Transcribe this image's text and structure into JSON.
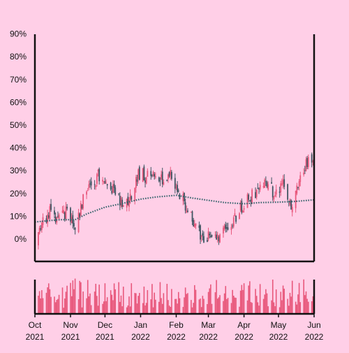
{
  "chart_data": {
    "type": "candlestick",
    "y_tick_labels": [
      "0%",
      "10%",
      "20%",
      "30%",
      "40%",
      "50%",
      "60%",
      "70%",
      "80%",
      "90%"
    ],
    "y_tick_values": [
      0,
      10,
      20,
      30,
      40,
      50,
      60,
      70,
      80,
      90
    ],
    "ylim": [
      -10,
      90
    ],
    "x_ticks": [
      {
        "month": "Oct",
        "year": "2021",
        "date": "2021-10-01"
      },
      {
        "month": "Nov",
        "year": "2021",
        "date": "2021-11-01"
      },
      {
        "month": "Dec",
        "year": "2021",
        "date": "2021-12-01"
      },
      {
        "month": "Jan",
        "year": "2022",
        "date": "2022-01-01"
      },
      {
        "month": "Feb",
        "year": "2022",
        "date": "2022-02-01"
      },
      {
        "month": "Mar",
        "year": "2022",
        "date": "2022-03-01"
      },
      {
        "month": "Apr",
        "year": "2022",
        "date": "2022-04-01"
      },
      {
        "month": "May",
        "year": "2022",
        "date": "2022-05-01"
      },
      {
        "month": "Jun",
        "year": "2022",
        "date": "2022-06-01"
      }
    ],
    "xlim": [
      "2021-10-01",
      "2022-06-01"
    ],
    "close_series": [
      {
        "date": "2021-10-01",
        "value": -3
      },
      {
        "date": "2021-10-08",
        "value": 9
      },
      {
        "date": "2021-10-15",
        "value": 12
      },
      {
        "date": "2021-10-22",
        "value": 8
      },
      {
        "date": "2021-10-29",
        "value": 12
      },
      {
        "date": "2021-11-05",
        "value": 5
      },
      {
        "date": "2021-11-12",
        "value": 17
      },
      {
        "date": "2021-11-19",
        "value": 24
      },
      {
        "date": "2021-11-26",
        "value": 28
      },
      {
        "date": "2021-12-03",
        "value": 24
      },
      {
        "date": "2021-12-10",
        "value": 20
      },
      {
        "date": "2021-12-17",
        "value": 14
      },
      {
        "date": "2021-12-24",
        "value": 20
      },
      {
        "date": "2021-12-31",
        "value": 29
      },
      {
        "date": "2022-01-07",
        "value": 27
      },
      {
        "date": "2022-01-14",
        "value": 29
      },
      {
        "date": "2022-01-21",
        "value": 25
      },
      {
        "date": "2022-01-28",
        "value": 28
      },
      {
        "date": "2022-02-04",
        "value": 20
      },
      {
        "date": "2022-02-11",
        "value": 13
      },
      {
        "date": "2022-02-18",
        "value": 5
      },
      {
        "date": "2022-02-25",
        "value": 0
      },
      {
        "date": "2022-03-04",
        "value": 3
      },
      {
        "date": "2022-03-11",
        "value": 0
      },
      {
        "date": "2022-03-18",
        "value": 5
      },
      {
        "date": "2022-03-25",
        "value": 10
      },
      {
        "date": "2022-04-01",
        "value": 16
      },
      {
        "date": "2022-04-08",
        "value": 19
      },
      {
        "date": "2022-04-15",
        "value": 22
      },
      {
        "date": "2022-04-22",
        "value": 24
      },
      {
        "date": "2022-04-29",
        "value": 19
      },
      {
        "date": "2022-05-06",
        "value": 24
      },
      {
        "date": "2022-05-13",
        "value": 14
      },
      {
        "date": "2022-05-20",
        "value": 28
      },
      {
        "date": "2022-05-27",
        "value": 35
      },
      {
        "date": "2022-06-01",
        "value": 31
      }
    ],
    "moving_average": [
      {
        "date": "2021-10-01",
        "value": 7.5
      },
      {
        "date": "2021-10-22",
        "value": 8.5
      },
      {
        "date": "2021-11-05",
        "value": 8.5
      },
      {
        "date": "2021-11-15",
        "value": 11
      },
      {
        "date": "2021-12-01",
        "value": 14
      },
      {
        "date": "2021-12-15",
        "value": 15.5
      },
      {
        "date": "2022-01-01",
        "value": 17.5
      },
      {
        "date": "2022-01-15",
        "value": 18.5
      },
      {
        "date": "2022-02-01",
        "value": 19.2
      },
      {
        "date": "2022-02-15",
        "value": 18
      },
      {
        "date": "2022-03-01",
        "value": 17
      },
      {
        "date": "2022-03-15",
        "value": 16
      },
      {
        "date": "2022-04-01",
        "value": 15.5
      },
      {
        "date": "2022-04-15",
        "value": 16
      },
      {
        "date": "2022-05-01",
        "value": 16.2
      },
      {
        "date": "2022-05-15",
        "value": 16.5
      },
      {
        "date": "2022-06-01",
        "value": 17.2
      }
    ],
    "colors": {
      "background": "#ffcfe7",
      "up": "#e8587c",
      "down": "#3d5561",
      "moving_average": "#3b6670",
      "volume": "#e8587c",
      "axis": "#111111"
    },
    "grid": false
  }
}
